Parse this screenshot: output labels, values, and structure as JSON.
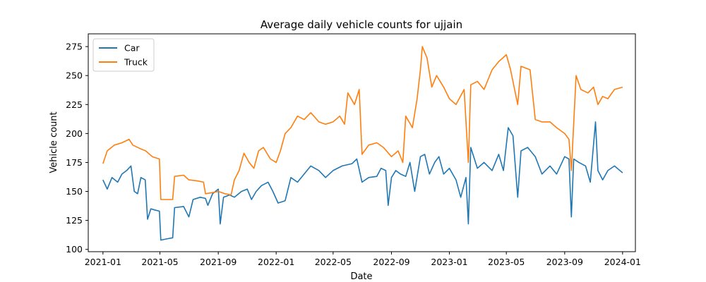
{
  "chart_data": {
    "type": "line",
    "title": "Average daily vehicle counts for ujjain",
    "xlabel": "Date",
    "ylabel": "Vehicle count",
    "xlim": [
      "2020-12-01",
      "2024-01-28"
    ],
    "ylim": [
      98,
      286
    ],
    "x_ticks": [
      "2021-01",
      "2021-05",
      "2021-09",
      "2022-01",
      "2022-05",
      "2022-09",
      "2023-01",
      "2023-05",
      "2023-09",
      "2024-01"
    ],
    "y_ticks": [
      100,
      125,
      150,
      175,
      200,
      225,
      250,
      275
    ],
    "grid": false,
    "legend_position": "top-left",
    "series": [
      {
        "name": "Car",
        "color": "#1f77b4",
        "points": [
          [
            "2021-01-01",
            160
          ],
          [
            "2021-01-10",
            152
          ],
          [
            "2021-01-20",
            162
          ],
          [
            "2021-02-01",
            158
          ],
          [
            "2021-02-10",
            165
          ],
          [
            "2021-02-20",
            168
          ],
          [
            "2021-03-01",
            172
          ],
          [
            "2021-03-08",
            150
          ],
          [
            "2021-03-15",
            148
          ],
          [
            "2021-03-22",
            162
          ],
          [
            "2021-03-31",
            160
          ],
          [
            "2021-04-05",
            126
          ],
          [
            "2021-04-12",
            135
          ],
          [
            "2021-04-20",
            134
          ],
          [
            "2021-04-30",
            133
          ],
          [
            "2021-05-03",
            108
          ],
          [
            "2021-05-15",
            109
          ],
          [
            "2021-05-28",
            110
          ],
          [
            "2021-06-01",
            136
          ],
          [
            "2021-06-20",
            137
          ],
          [
            "2021-07-01",
            128
          ],
          [
            "2021-07-10",
            143
          ],
          [
            "2021-07-25",
            145
          ],
          [
            "2021-08-05",
            144
          ],
          [
            "2021-08-10",
            138
          ],
          [
            "2021-08-20",
            148
          ],
          [
            "2021-09-01",
            152
          ],
          [
            "2021-09-05",
            122
          ],
          [
            "2021-09-12",
            145
          ],
          [
            "2021-09-25",
            147
          ],
          [
            "2021-10-05",
            145
          ],
          [
            "2021-10-20",
            150
          ],
          [
            "2021-11-01",
            152
          ],
          [
            "2021-11-10",
            143
          ],
          [
            "2021-11-20",
            150
          ],
          [
            "2021-12-01",
            155
          ],
          [
            "2021-12-15",
            158
          ],
          [
            "2021-12-25",
            150
          ],
          [
            "2022-01-05",
            140
          ],
          [
            "2022-01-20",
            142
          ],
          [
            "2022-02-01",
            162
          ],
          [
            "2022-02-15",
            158
          ],
          [
            "2022-03-01",
            165
          ],
          [
            "2022-03-15",
            172
          ],
          [
            "2022-04-01",
            168
          ],
          [
            "2022-04-15",
            162
          ],
          [
            "2022-05-01",
            168
          ],
          [
            "2022-05-20",
            172
          ],
          [
            "2022-06-10",
            174
          ],
          [
            "2022-06-20",
            178
          ],
          [
            "2022-07-01",
            158
          ],
          [
            "2022-07-15",
            162
          ],
          [
            "2022-08-01",
            163
          ],
          [
            "2022-08-10",
            170
          ],
          [
            "2022-08-20",
            168
          ],
          [
            "2022-08-25",
            138
          ],
          [
            "2022-09-01",
            162
          ],
          [
            "2022-09-10",
            168
          ],
          [
            "2022-09-20",
            165
          ],
          [
            "2022-10-01",
            163
          ],
          [
            "2022-10-10",
            175
          ],
          [
            "2022-10-20",
            150
          ],
          [
            "2022-11-01",
            180
          ],
          [
            "2022-11-10",
            182
          ],
          [
            "2022-11-20",
            165
          ],
          [
            "2022-12-01",
            175
          ],
          [
            "2022-12-10",
            180
          ],
          [
            "2022-12-20",
            165
          ],
          [
            "2023-01-01",
            170
          ],
          [
            "2023-01-15",
            160
          ],
          [
            "2023-01-25",
            145
          ],
          [
            "2023-02-05",
            162
          ],
          [
            "2023-02-10",
            122
          ],
          [
            "2023-02-15",
            188
          ],
          [
            "2023-03-01",
            170
          ],
          [
            "2023-03-15",
            175
          ],
          [
            "2023-04-01",
            168
          ],
          [
            "2023-04-15",
            182
          ],
          [
            "2023-04-25",
            168
          ],
          [
            "2023-05-05",
            205
          ],
          [
            "2023-05-15",
            198
          ],
          [
            "2023-05-25",
            145
          ],
          [
            "2023-06-01",
            185
          ],
          [
            "2023-06-15",
            188
          ],
          [
            "2023-07-01",
            180
          ],
          [
            "2023-07-15",
            165
          ],
          [
            "2023-08-01",
            172
          ],
          [
            "2023-08-15",
            165
          ],
          [
            "2023-09-01",
            180
          ],
          [
            "2023-09-10",
            178
          ],
          [
            "2023-09-15",
            128
          ],
          [
            "2023-09-20",
            178
          ],
          [
            "2023-10-01",
            175
          ],
          [
            "2023-10-15",
            172
          ],
          [
            "2023-10-25",
            158
          ],
          [
            "2023-11-05",
            210
          ],
          [
            "2023-11-10",
            168
          ],
          [
            "2023-11-20",
            160
          ],
          [
            "2023-12-01",
            168
          ],
          [
            "2023-12-15",
            172
          ],
          [
            "2024-01-01",
            166
          ]
        ]
      },
      {
        "name": "Truck",
        "color": "#ff7f0e",
        "points": [
          [
            "2021-01-01",
            174
          ],
          [
            "2021-01-10",
            185
          ],
          [
            "2021-01-25",
            190
          ],
          [
            "2021-02-10",
            192
          ],
          [
            "2021-02-25",
            195
          ],
          [
            "2021-03-05",
            190
          ],
          [
            "2021-03-20",
            187
          ],
          [
            "2021-04-01",
            185
          ],
          [
            "2021-04-15",
            180
          ],
          [
            "2021-04-30",
            178
          ],
          [
            "2021-05-03",
            143
          ],
          [
            "2021-05-15",
            143
          ],
          [
            "2021-05-28",
            143
          ],
          [
            "2021-06-01",
            163
          ],
          [
            "2021-06-20",
            164
          ],
          [
            "2021-07-01",
            160
          ],
          [
            "2021-07-20",
            159
          ],
          [
            "2021-08-01",
            158
          ],
          [
            "2021-08-05",
            148
          ],
          [
            "2021-08-20",
            149
          ],
          [
            "2021-09-01",
            150
          ],
          [
            "2021-09-15",
            148
          ],
          [
            "2021-09-28",
            147
          ],
          [
            "2021-10-05",
            160
          ],
          [
            "2021-10-15",
            168
          ],
          [
            "2021-10-25",
            183
          ],
          [
            "2021-11-05",
            175
          ],
          [
            "2021-11-15",
            170
          ],
          [
            "2021-11-25",
            185
          ],
          [
            "2021-12-05",
            188
          ],
          [
            "2021-12-20",
            178
          ],
          [
            "2022-01-01",
            175
          ],
          [
            "2022-01-10",
            185
          ],
          [
            "2022-01-20",
            200
          ],
          [
            "2022-02-01",
            205
          ],
          [
            "2022-02-15",
            215
          ],
          [
            "2022-03-01",
            212
          ],
          [
            "2022-03-15",
            218
          ],
          [
            "2022-04-01",
            210
          ],
          [
            "2022-04-15",
            208
          ],
          [
            "2022-05-01",
            210
          ],
          [
            "2022-05-15",
            215
          ],
          [
            "2022-05-25",
            208
          ],
          [
            "2022-06-01",
            235
          ],
          [
            "2022-06-15",
            225
          ],
          [
            "2022-06-25",
            238
          ],
          [
            "2022-07-01",
            182
          ],
          [
            "2022-07-15",
            190
          ],
          [
            "2022-08-01",
            192
          ],
          [
            "2022-08-15",
            188
          ],
          [
            "2022-09-01",
            180
          ],
          [
            "2022-09-15",
            185
          ],
          [
            "2022-09-25",
            175
          ],
          [
            "2022-10-01",
            215
          ],
          [
            "2022-10-15",
            205
          ],
          [
            "2022-10-25",
            230
          ],
          [
            "2022-11-01",
            255
          ],
          [
            "2022-11-05",
            275
          ],
          [
            "2022-11-15",
            265
          ],
          [
            "2022-11-25",
            240
          ],
          [
            "2022-12-05",
            250
          ],
          [
            "2022-12-20",
            240
          ],
          [
            "2023-01-01",
            230
          ],
          [
            "2023-01-15",
            225
          ],
          [
            "2023-02-01",
            238
          ],
          [
            "2023-02-10",
            175
          ],
          [
            "2023-02-15",
            242
          ],
          [
            "2023-03-01",
            245
          ],
          [
            "2023-03-15",
            238
          ],
          [
            "2023-04-01",
            255
          ],
          [
            "2023-04-15",
            262
          ],
          [
            "2023-05-01",
            268
          ],
          [
            "2023-05-10",
            255
          ],
          [
            "2023-05-25",
            225
          ],
          [
            "2023-06-01",
            258
          ],
          [
            "2023-06-20",
            255
          ],
          [
            "2023-07-01",
            212
          ],
          [
            "2023-07-15",
            210
          ],
          [
            "2023-08-01",
            210
          ],
          [
            "2023-08-15",
            205
          ],
          [
            "2023-09-01",
            200
          ],
          [
            "2023-09-10",
            195
          ],
          [
            "2023-09-15",
            168
          ],
          [
            "2023-09-25",
            250
          ],
          [
            "2023-10-05",
            238
          ],
          [
            "2023-10-20",
            235
          ],
          [
            "2023-11-01",
            240
          ],
          [
            "2023-11-10",
            225
          ],
          [
            "2023-11-20",
            232
          ],
          [
            "2023-12-01",
            230
          ],
          [
            "2023-12-15",
            238
          ],
          [
            "2024-01-01",
            240
          ]
        ]
      }
    ]
  }
}
